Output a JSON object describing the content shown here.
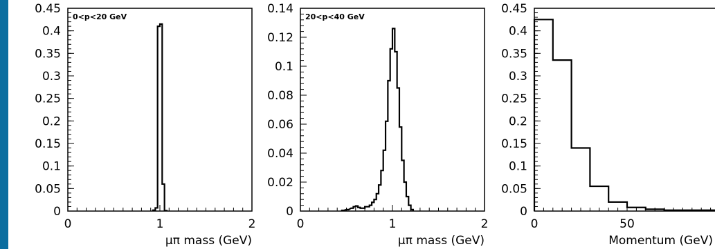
{
  "chart_data": [
    {
      "type": "histogram",
      "annotation": "0<p<20 GeV",
      "xlabel": "μπ mass (GeV)",
      "xlim": [
        0,
        2
      ],
      "ylim": [
        0,
        0.45
      ],
      "xticks": [
        "0",
        "1",
        "2"
      ],
      "yticks": [
        "0",
        "0.05",
        "0.1",
        "0.15",
        "0.2",
        "0.25",
        "0.3",
        "0.35",
        "0.4",
        "0.45"
      ],
      "bin_width": 0.025,
      "bins": [
        {
          "x": 0.925,
          "y": 0.002
        },
        {
          "x": 0.95,
          "y": 0.007
        },
        {
          "x": 0.975,
          "y": 0.41
        },
        {
          "x": 1.0,
          "y": 0.415
        },
        {
          "x": 1.025,
          "y": 0.06
        },
        {
          "x": 1.05,
          "y": 0.001
        }
      ]
    },
    {
      "type": "histogram",
      "annotation": "20<p<40 GeV",
      "xlabel": "μπ mass (GeV)",
      "xlim": [
        0,
        2
      ],
      "ylim": [
        0,
        0.14
      ],
      "xticks": [
        "0",
        "1",
        "2"
      ],
      "yticks": [
        "0",
        "0.02",
        "0.04",
        "0.06",
        "0.08",
        "0.1",
        "0.12",
        "0.14"
      ],
      "bin_width": 0.025,
      "bins": [
        {
          "x": 0.45,
          "y": 0.0005
        },
        {
          "x": 0.5,
          "y": 0.001
        },
        {
          "x": 0.55,
          "y": 0.002
        },
        {
          "x": 0.575,
          "y": 0.003
        },
        {
          "x": 0.6,
          "y": 0.0035
        },
        {
          "x": 0.625,
          "y": 0.0025
        },
        {
          "x": 0.65,
          "y": 0.002
        },
        {
          "x": 0.675,
          "y": 0.002
        },
        {
          "x": 0.7,
          "y": 0.003
        },
        {
          "x": 0.725,
          "y": 0.003
        },
        {
          "x": 0.75,
          "y": 0.004
        },
        {
          "x": 0.775,
          "y": 0.006
        },
        {
          "x": 0.8,
          "y": 0.008
        },
        {
          "x": 0.825,
          "y": 0.012
        },
        {
          "x": 0.85,
          "y": 0.018
        },
        {
          "x": 0.875,
          "y": 0.028
        },
        {
          "x": 0.9,
          "y": 0.042
        },
        {
          "x": 0.925,
          "y": 0.062
        },
        {
          "x": 0.95,
          "y": 0.09
        },
        {
          "x": 0.975,
          "y": 0.112
        },
        {
          "x": 1.0,
          "y": 0.126
        },
        {
          "x": 1.025,
          "y": 0.11
        },
        {
          "x": 1.05,
          "y": 0.085
        },
        {
          "x": 1.075,
          "y": 0.058
        },
        {
          "x": 1.1,
          "y": 0.035
        },
        {
          "x": 1.125,
          "y": 0.02
        },
        {
          "x": 1.15,
          "y": 0.01
        },
        {
          "x": 1.175,
          "y": 0.004
        },
        {
          "x": 1.2,
          "y": 0.001
        }
      ]
    },
    {
      "type": "histogram",
      "annotation": "",
      "xlabel": "Momentum (GeV)",
      "xlim": [
        0,
        100
      ],
      "ylim": [
        0,
        0.45
      ],
      "xticks": [
        "0",
        "50"
      ],
      "xtick_values": [
        0,
        50
      ],
      "yticks": [
        "0",
        "0.05",
        "0.1",
        "0.15",
        "0.2",
        "0.25",
        "0.3",
        "0.35",
        "0.4",
        "0.45"
      ],
      "bin_width": 10,
      "bins": [
        {
          "x": 0,
          "y": 0.425
        },
        {
          "x": 10,
          "y": 0.335
        },
        {
          "x": 20,
          "y": 0.14
        },
        {
          "x": 30,
          "y": 0.055
        },
        {
          "x": 40,
          "y": 0.02
        },
        {
          "x": 50,
          "y": 0.008
        },
        {
          "x": 60,
          "y": 0.004
        },
        {
          "x": 70,
          "y": 0.002
        },
        {
          "x": 80,
          "y": 0.002
        },
        {
          "x": 90,
          "y": 0.002
        }
      ]
    }
  ]
}
